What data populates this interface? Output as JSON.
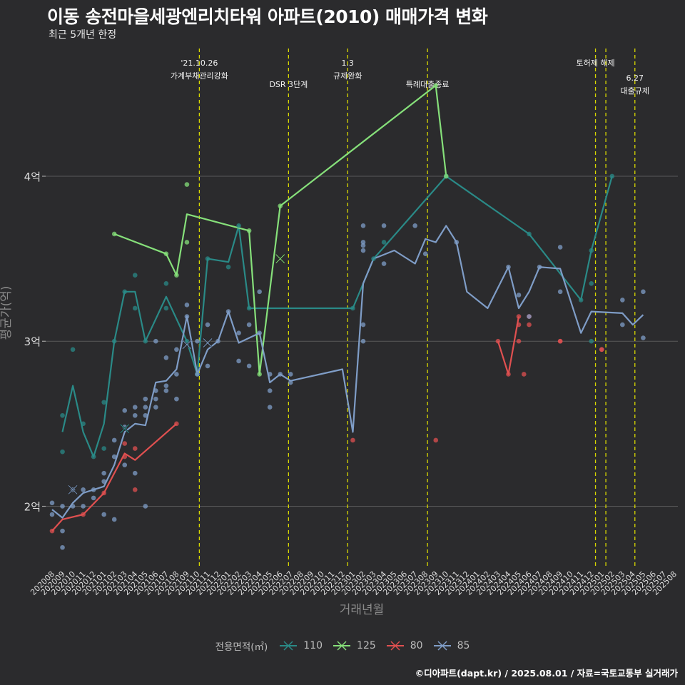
{
  "header": {
    "title": "이동 송전마을세광엔리치타워 아파트(2010) 매매가격 변화",
    "subtitle": "최근 5개년 한정"
  },
  "caption": "©디아파트(dapt.kr) / 2025.08.01 / 자료=국토교통부 실거래가",
  "colors": {
    "background": "#2b2b2d",
    "grid": "#5a5a5a",
    "event_line": "#d8d800",
    "s110": "#2a8a87",
    "s125": "#86e07a",
    "s80": "#e05050",
    "s85": "#7f9dc7"
  },
  "chart_data": {
    "type": "line",
    "title": "이동 송전마을세광엔리치타워 아파트(2010) 매매가격 변화",
    "subtitle": "최근 5개년 한정",
    "xlabel": "거래년월",
    "ylabel": "평균가(억)",
    "ylim": [
      1.63,
      4.8
    ],
    "y_ticks": [
      {
        "value": 2,
        "label": "2억"
      },
      {
        "value": 3,
        "label": "3억"
      },
      {
        "value": 4,
        "label": "4억"
      }
    ],
    "x_ticks": [
      "202008",
      "202009",
      "202010",
      "202011",
      "202012",
      "202101",
      "202102",
      "202103",
      "202104",
      "202105",
      "202106",
      "202107",
      "202108",
      "202109",
      "202110",
      "202111",
      "202112",
      "202201",
      "202202",
      "202203",
      "202204",
      "202205",
      "202206",
      "202207",
      "202208",
      "202209",
      "202210",
      "202211",
      "202212",
      "202301",
      "202302",
      "202303",
      "202304",
      "202305",
      "202306",
      "202307",
      "202308",
      "202309",
      "202310",
      "202311",
      "202312",
      "202401",
      "202402",
      "202403",
      "202404",
      "202405",
      "202406",
      "202407",
      "202408",
      "202409",
      "202410",
      "202411",
      "202412",
      "202501",
      "202502",
      "202503",
      "202504",
      "202505",
      "202506",
      "202507",
      "202508"
    ],
    "grid": "horizontal",
    "legend_title": "전용면적(㎡)",
    "legend_position": "bottom",
    "events": [
      {
        "x": 14.2,
        "lines": [
          "'21.10.26",
          "가계부채관리강화"
        ],
        "row": 1
      },
      {
        "x": 22.8,
        "lines": [
          "DSR 3단계"
        ],
        "row": 2
      },
      {
        "x": 28.5,
        "lines": [
          "1.3",
          "규제완화"
        ],
        "row": 1
      },
      {
        "x": 36.2,
        "lines": [
          "특례대출종료"
        ],
        "row": 2
      },
      {
        "x": 52.4,
        "lines": [
          "토허제 해제"
        ],
        "row": 1
      },
      {
        "x": 53.4,
        "lines": [],
        "row": 1
      },
      {
        "x": 56.2,
        "lines": [
          "6.27",
          "대출규제"
        ],
        "row": 3
      }
    ],
    "series": [
      {
        "name": "110",
        "color_key": "s110",
        "line": [
          [
            1,
            2.45
          ],
          [
            2,
            2.73
          ],
          [
            3,
            2.45
          ],
          [
            4,
            2.3
          ],
          [
            5,
            2.5
          ],
          [
            6,
            3.0
          ],
          [
            7,
            3.3
          ],
          [
            8,
            3.3
          ],
          [
            9,
            3.0
          ],
          [
            11,
            3.27
          ],
          [
            13,
            3.0
          ],
          [
            14,
            2.8
          ],
          [
            15,
            3.5
          ],
          [
            17,
            3.48
          ],
          [
            18,
            3.7
          ],
          [
            19,
            3.2
          ],
          [
            29,
            3.2
          ],
          [
            31,
            3.5
          ],
          [
            32,
            3.57
          ],
          [
            38,
            4.0
          ],
          [
            46,
            3.65
          ],
          [
            51,
            3.25
          ],
          [
            52,
            3.55
          ],
          [
            54,
            4.0
          ]
        ],
        "points": [
          [
            1,
            2.55
          ],
          [
            1,
            2.33
          ],
          [
            2,
            2.95
          ],
          [
            3,
            2.5
          ],
          [
            4,
            2.3
          ],
          [
            5,
            2.63
          ],
          [
            5,
            2.35
          ],
          [
            6,
            3.0
          ],
          [
            7,
            3.3
          ],
          [
            8,
            3.4
          ],
          [
            8,
            3.2
          ],
          [
            9,
            3.0
          ],
          [
            11,
            3.35
          ],
          [
            11,
            3.2
          ],
          [
            13,
            3.0
          ],
          [
            14,
            2.8
          ],
          [
            15,
            3.5
          ],
          [
            17,
            3.45
          ],
          [
            18,
            3.7
          ],
          [
            19,
            3.2
          ],
          [
            29,
            3.2
          ],
          [
            31,
            3.5
          ],
          [
            32,
            3.6
          ],
          [
            38,
            4.0
          ],
          [
            46,
            3.65
          ],
          [
            51,
            3.25
          ],
          [
            52,
            3.55
          ],
          [
            52,
            3.35
          ],
          [
            52,
            3.0
          ],
          [
            54,
            4.0
          ]
        ]
      },
      {
        "name": "125",
        "color_key": "s125",
        "line": [
          [
            6,
            3.65
          ],
          [
            11,
            3.53
          ],
          [
            12,
            3.4
          ],
          [
            13,
            3.77
          ],
          [
            19,
            3.67
          ],
          [
            20,
            2.8
          ],
          [
            22,
            3.82
          ],
          [
            37,
            4.55
          ],
          [
            38,
            4.0
          ]
        ],
        "points": [
          [
            6,
            3.65
          ],
          [
            11,
            3.53
          ],
          [
            12,
            3.4
          ],
          [
            13,
            3.95
          ],
          [
            13,
            3.6
          ],
          [
            19,
            3.67
          ],
          [
            20,
            2.8
          ],
          [
            22,
            3.82
          ],
          [
            37,
            4.55
          ],
          [
            38,
            4.0
          ]
        ]
      },
      {
        "name": "80",
        "color_key": "s80",
        "line": [
          [
            0,
            1.85
          ],
          [
            1,
            1.92
          ],
          [
            3,
            1.95
          ],
          [
            5,
            2.08
          ],
          [
            7,
            2.32
          ],
          [
            8,
            2.28
          ],
          [
            12,
            2.5
          ]
        ],
        "points": [
          [
            0,
            1.85
          ],
          [
            3,
            1.95
          ],
          [
            5,
            2.08
          ],
          [
            7,
            2.3
          ],
          [
            7,
            2.38
          ],
          [
            8,
            2.35
          ],
          [
            8,
            2.1
          ],
          [
            12,
            2.5
          ],
          [
            29,
            2.4
          ],
          [
            37,
            2.4
          ],
          [
            45,
            3.0
          ],
          [
            45.5,
            2.8
          ],
          [
            46,
            3.15
          ],
          [
            46,
            3.1
          ],
          [
            49,
            3.0
          ],
          [
            53,
            2.95
          ]
        ]
      },
      {
        "name": "80",
        "color_key": "s80",
        "line": [
          [
            43,
            3.0
          ],
          [
            44,
            2.8
          ],
          [
            45,
            3.15
          ]
        ],
        "points": [
          [
            43,
            3.0
          ],
          [
            44,
            2.8
          ],
          [
            45,
            3.15
          ],
          [
            45,
            3.1
          ],
          [
            49,
            3.0
          ],
          [
            53,
            2.95
          ]
        ]
      },
      {
        "name": "85",
        "color_key": "s85",
        "line": [
          [
            0,
            1.98
          ],
          [
            1,
            1.93
          ],
          [
            2,
            2.02
          ],
          [
            3,
            2.08
          ],
          [
            4,
            2.1
          ],
          [
            5,
            2.12
          ],
          [
            6,
            2.25
          ],
          [
            7,
            2.45
          ],
          [
            8,
            2.5
          ],
          [
            9,
            2.49
          ],
          [
            10,
            2.75
          ],
          [
            11,
            2.76
          ],
          [
            12,
            2.83
          ],
          [
            13,
            3.15
          ],
          [
            13.5,
            2.98
          ],
          [
            14,
            2.8
          ],
          [
            15,
            2.95
          ],
          [
            16,
            3.0
          ],
          [
            17,
            3.18
          ],
          [
            18,
            2.99
          ],
          [
            19,
            3.02
          ],
          [
            20,
            3.05
          ],
          [
            21,
            2.75
          ],
          [
            22,
            2.8
          ],
          [
            23,
            2.76
          ],
          [
            28,
            2.83
          ],
          [
            29,
            2.45
          ],
          [
            30,
            3.35
          ],
          [
            31,
            3.5
          ],
          [
            33,
            3.55
          ],
          [
            35,
            3.47
          ],
          [
            36,
            3.62
          ],
          [
            37,
            3.6
          ],
          [
            38,
            3.7
          ],
          [
            39,
            3.6
          ],
          [
            40,
            3.3
          ],
          [
            42,
            3.2
          ],
          [
            44,
            3.45
          ],
          [
            45,
            3.2
          ],
          [
            46,
            3.3
          ],
          [
            47,
            3.45
          ],
          [
            49,
            3.44
          ],
          [
            51,
            3.05
          ],
          [
            52,
            3.18
          ],
          [
            55,
            3.17
          ],
          [
            56,
            3.1
          ],
          [
            57,
            3.16
          ]
        ],
        "points": [
          [
            0,
            2.02
          ],
          [
            0,
            1.95
          ],
          [
            1,
            1.85
          ],
          [
            1,
            1.75
          ],
          [
            1,
            2.0
          ],
          [
            2,
            2.1
          ],
          [
            2,
            2.0
          ],
          [
            3,
            2.1
          ],
          [
            3,
            2.0
          ],
          [
            4,
            2.1
          ],
          [
            4,
            2.05
          ],
          [
            5,
            2.15
          ],
          [
            5,
            2.2
          ],
          [
            5,
            1.95
          ],
          [
            6,
            2.4
          ],
          [
            6,
            2.3
          ],
          [
            6,
            1.92
          ],
          [
            7,
            2.58
          ],
          [
            7,
            2.48
          ],
          [
            7,
            2.25
          ],
          [
            8,
            2.6
          ],
          [
            8,
            2.55
          ],
          [
            8,
            2.2
          ],
          [
            9,
            2.6
          ],
          [
            9,
            2.55
          ],
          [
            9,
            2.65
          ],
          [
            9,
            2.0
          ],
          [
            10,
            2.65
          ],
          [
            10,
            2.7
          ],
          [
            10,
            2.6
          ],
          [
            10,
            3.0
          ],
          [
            11,
            2.7
          ],
          [
            11,
            2.73
          ],
          [
            11,
            2.9
          ],
          [
            12,
            2.65
          ],
          [
            12,
            2.8
          ],
          [
            12,
            2.95
          ],
          [
            13,
            3.22
          ],
          [
            13,
            3.15
          ],
          [
            14,
            3.0
          ],
          [
            14,
            2.8
          ],
          [
            15,
            3.1
          ],
          [
            15,
            2.85
          ],
          [
            16,
            3.0
          ],
          [
            17,
            3.18
          ],
          [
            18,
            3.05
          ],
          [
            18,
            2.88
          ],
          [
            19,
            3.1
          ],
          [
            19,
            2.85
          ],
          [
            20,
            3.3
          ],
          [
            20,
            3.05
          ],
          [
            21,
            2.7
          ],
          [
            21,
            2.6
          ],
          [
            21,
            2.8
          ],
          [
            22,
            2.8
          ],
          [
            23,
            2.8
          ],
          [
            23,
            2.75
          ],
          [
            30,
            3.7
          ],
          [
            30,
            3.6
          ],
          [
            30,
            3.58
          ],
          [
            30,
            3.55
          ],
          [
            30,
            3.1
          ],
          [
            30,
            3.0
          ],
          [
            32,
            3.7
          ],
          [
            32,
            3.47
          ],
          [
            35,
            3.7
          ],
          [
            36,
            3.53
          ],
          [
            39,
            3.6
          ],
          [
            44,
            3.45
          ],
          [
            45,
            3.28
          ],
          [
            46,
            3.15
          ],
          [
            47,
            3.45
          ],
          [
            49,
            3.57
          ],
          [
            49,
            3.3
          ],
          [
            55,
            3.25
          ],
          [
            55,
            3.1
          ],
          [
            57,
            3.3
          ],
          [
            57,
            3.02
          ]
        ]
      }
    ],
    "markers": [
      {
        "series": "85",
        "x": 2,
        "y": 2.1
      },
      {
        "series": "110",
        "x": 7,
        "y": 2.47
      },
      {
        "series": "85",
        "x": 13,
        "y": 2.98
      },
      {
        "series": "85",
        "x": 15,
        "y": 2.99
      },
      {
        "series": "125",
        "x": 22,
        "y": 3.5
      }
    ],
    "legend": [
      {
        "label": "110",
        "color_key": "s110"
      },
      {
        "label": "125",
        "color_key": "s125"
      },
      {
        "label": "80",
        "color_key": "s80"
      },
      {
        "label": "85",
        "color_key": "s85"
      }
    ]
  }
}
